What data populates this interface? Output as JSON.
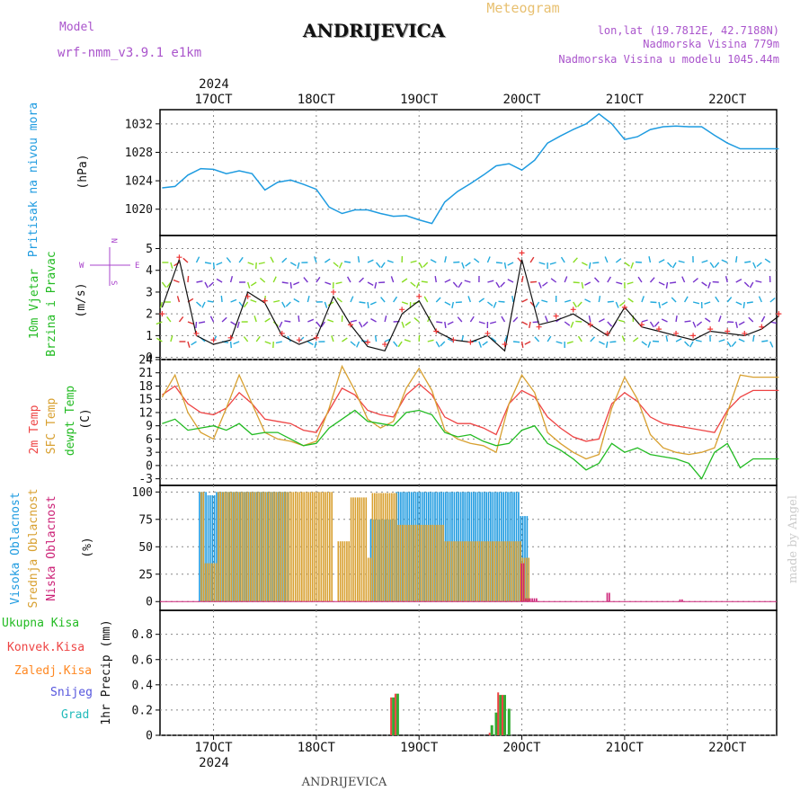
{
  "header": {
    "model_label": "Model",
    "model_name": "wrf-nmm_v3.9.1  e1km",
    "title": "ANDRIJEVICA",
    "meteogram_label": "Meteogram",
    "coords": "lon,lat (19.7812E, 42.7188N)",
    "elevation": "Nadmorska Visina 779m",
    "model_elevation": "Nadmorska Visina u modelu 1045.44m",
    "footer_title": "ANDRIJEVICA",
    "credit": "made by Angel"
  },
  "colors": {
    "pressure": "#1e9be0",
    "temp2m": "#ee4444",
    "sfc": "#d8a030",
    "dewpt": "#22bb22",
    "high_cloud": "#1e9be0",
    "mid_cloud": "#d8a030",
    "low_cloud": "#cc2277",
    "total_precip": "#33aa33",
    "conv_precip": "#ee4444",
    "frozen": "#ff8822",
    "snow": "#5555dd",
    "graupel": "#22bbbb",
    "compass": "#aa44cc",
    "wind_speed": "#111111",
    "gust": "#ee3333"
  },
  "time_axis": {
    "top_year": "2024",
    "bottom_year": "2024",
    "days": [
      "17OCT",
      "18OCT",
      "19OCT",
      "20OCT",
      "21OCT",
      "22OCT"
    ],
    "start_hours_before_first_day": 12,
    "total_hours": 144
  },
  "compass": {
    "n": "N",
    "s": "S",
    "e": "E",
    "w": "W"
  },
  "chart_data": [
    {
      "type": "line",
      "name": "pressure",
      "ylabel": "Pritisak na nivou mora",
      "unit": "(hPa)",
      "ylim": [
        1016.3,
        1034.0
      ],
      "yticks": [
        1020,
        1024,
        1028,
        1032
      ],
      "x_hours": [
        0,
        3,
        6,
        9,
        12,
        15,
        18,
        21,
        24,
        27,
        30,
        33,
        36,
        39,
        42,
        45,
        48,
        51,
        54,
        57,
        60,
        63,
        66,
        69,
        72,
        75,
        78,
        81,
        84,
        87,
        90,
        93,
        96,
        99,
        102,
        105,
        108,
        111,
        114,
        117,
        120,
        123,
        126,
        129,
        132,
        135,
        138,
        141,
        144
      ],
      "values": [
        1023.0,
        1023.2,
        1024.8,
        1025.7,
        1025.6,
        1025.0,
        1025.4,
        1025.0,
        1022.7,
        1023.8,
        1024.1,
        1023.5,
        1022.8,
        1020.3,
        1019.4,
        1019.9,
        1019.9,
        1019.4,
        1019.0,
        1019.1,
        1018.5,
        1018.0,
        1021.0,
        1022.5,
        1023.6,
        1024.8,
        1026.1,
        1026.4,
        1025.5,
        1026.9,
        1029.3,
        1030.3,
        1031.2,
        1032.0,
        1033.4,
        1032.0,
        1029.8,
        1030.2,
        1031.2,
        1031.6,
        1031.7,
        1031.6,
        1031.6,
        1030.4,
        1029.3,
        1028.5,
        1028.5,
        1028.5,
        1028.5
      ]
    },
    {
      "type": "line",
      "name": "wind",
      "ylabel": "10m Vjetar Brzina i Pravac",
      "label_lines": [
        "10m Vjetar",
        "Brzina i Pravac"
      ],
      "unit": "(m/s)",
      "ylim": [
        -0.1,
        5.6
      ],
      "yticks": [
        0,
        1,
        2,
        3,
        4,
        5
      ],
      "x_hours": [
        0,
        4,
        8,
        12,
        16,
        20,
        24,
        28,
        32,
        36,
        40,
        44,
        48,
        52,
        56,
        60,
        64,
        68,
        72,
        76,
        80,
        84,
        88,
        92,
        96,
        100,
        104,
        108,
        112,
        116,
        120,
        124,
        128,
        132,
        136,
        140,
        144
      ],
      "speed": [
        2.3,
        4.5,
        1.0,
        0.6,
        0.8,
        3.0,
        2.5,
        1.0,
        0.6,
        0.9,
        2.8,
        1.5,
        0.5,
        0.3,
        2.0,
        2.6,
        1.2,
        0.8,
        0.7,
        1.0,
        0.3,
        4.5,
        1.5,
        1.7,
        2.0,
        1.5,
        1.0,
        2.3,
        1.4,
        1.2,
        1.0,
        0.8,
        1.2,
        1.1,
        1.0,
        1.3,
        1.9
      ],
      "gust": [
        2.0,
        4.6,
        1.1,
        0.8,
        0.9,
        2.8,
        2.6,
        1.1,
        0.8,
        0.9,
        3.0,
        1.5,
        0.7,
        0.6,
        2.2,
        2.8,
        1.2,
        0.8,
        0.7,
        1.1,
        0.6,
        4.8,
        1.4,
        1.9,
        2.2,
        1.5,
        1.1,
        2.3,
        1.5,
        1.3,
        1.1,
        1.0,
        1.3,
        1.2,
        1.1,
        1.4,
        2.0
      ]
    },
    {
      "type": "line",
      "name": "temperature",
      "label_lines": [
        "2m Temp",
        "SFC Temp",
        "dewpt Temp"
      ],
      "unit": "(C)",
      "ylim": [
        -4.5,
        24.0
      ],
      "yticks": [
        -3,
        0,
        3,
        6,
        9,
        12,
        15,
        18,
        21,
        24
      ],
      "x_hours": [
        0,
        3,
        6,
        9,
        12,
        15,
        18,
        21,
        24,
        27,
        30,
        33,
        36,
        39,
        42,
        45,
        48,
        51,
        54,
        57,
        60,
        63,
        66,
        69,
        72,
        75,
        78,
        81,
        84,
        87,
        90,
        93,
        96,
        99,
        102,
        105,
        108,
        111,
        114,
        117,
        120,
        123,
        126,
        129,
        132,
        135,
        138,
        141,
        144
      ],
      "series": [
        {
          "name": "2m Temp",
          "values": [
            16.0,
            18.0,
            14.0,
            12.0,
            11.5,
            13.0,
            16.5,
            14.0,
            10.5,
            10.0,
            9.5,
            8.0,
            7.5,
            12.5,
            17.5,
            16.0,
            12.5,
            11.5,
            11.0,
            16.0,
            18.5,
            16.0,
            11.0,
            9.5,
            9.5,
            8.5,
            7.0,
            14.0,
            17.0,
            15.5,
            11.0,
            8.5,
            6.5,
            5.5,
            6.0,
            14.0,
            16.5,
            14.5,
            11.0,
            9.5,
            9.0,
            8.5,
            8.0,
            7.5,
            12.5,
            15.5,
            17.0,
            17.0,
            17.0
          ]
        },
        {
          "name": "SFC Temp",
          "values": [
            15.5,
            20.5,
            12.0,
            7.5,
            6.0,
            13.0,
            20.5,
            14.0,
            7.5,
            6.0,
            5.5,
            4.5,
            5.5,
            13.0,
            22.5,
            17.0,
            10.5,
            8.5,
            10.0,
            17.5,
            22.0,
            17.0,
            8.0,
            6.0,
            5.0,
            4.5,
            3.0,
            14.0,
            20.5,
            16.5,
            7.5,
            5.0,
            3.0,
            1.5,
            2.5,
            13.0,
            20.0,
            15.0,
            7.0,
            4.0,
            3.0,
            2.5,
            3.0,
            4.0,
            12.0,
            20.5,
            20.0,
            20.0,
            20.0
          ]
        },
        {
          "name": "dewpt Temp",
          "values": [
            9.5,
            10.5,
            8.0,
            8.5,
            9.0,
            8.0,
            9.5,
            7.0,
            7.5,
            7.5,
            6.0,
            4.5,
            5.0,
            8.5,
            10.5,
            12.5,
            10.0,
            9.5,
            9.0,
            12.0,
            12.5,
            11.5,
            7.5,
            6.5,
            7.0,
            5.5,
            4.5,
            5.0,
            8.0,
            9.0,
            5.0,
            3.5,
            1.5,
            -1.0,
            0.5,
            5.0,
            3.0,
            4.0,
            2.5,
            2.0,
            1.5,
            0.5,
            -3.0,
            3.0,
            5.0,
            -0.5,
            1.5,
            1.5,
            1.5
          ]
        }
      ]
    },
    {
      "type": "bar",
      "name": "cloud",
      "label_lines": [
        "Visoka Oblacnost",
        "Srednja Oblacnost",
        "Niska Oblacnost"
      ],
      "unit": "(%)",
      "ylim": [
        -8,
        106
      ],
      "yticks": [
        0,
        25,
        50,
        75,
        100
      ],
      "series": [
        {
          "name": "Visoka Oblacnost",
          "segments": [
            [
              9,
              11,
              100
            ],
            [
              11,
              13,
              97
            ],
            [
              13,
              20,
              100
            ],
            [
              20,
              24,
              100
            ],
            [
              24,
              30,
              100
            ],
            [
              49,
              55,
              75
            ],
            [
              55,
              72,
              100
            ],
            [
              72,
              84,
              100
            ],
            [
              84,
              86,
              78
            ]
          ]
        },
        {
          "name": "Srednja Oblacnost",
          "segments": [
            [
              9,
              10,
              100
            ],
            [
              10,
              13,
              35
            ],
            [
              13,
              40,
              100
            ],
            [
              41,
              44,
              55
            ],
            [
              44,
              48,
              95
            ],
            [
              48,
              49,
              40
            ],
            [
              49,
              55,
              99
            ],
            [
              55,
              66,
              70
            ],
            [
              66,
              84,
              55
            ],
            [
              84,
              86,
              40
            ]
          ]
        },
        {
          "name": "Niska Oblacnost",
          "segments": [
            [
              84,
              85,
              35
            ],
            [
              85,
              88,
              3
            ],
            [
              104,
              105,
              8
            ],
            [
              121,
              122,
              2
            ]
          ]
        }
      ]
    },
    {
      "type": "bar",
      "name": "precip",
      "label_lines": [
        "Ukupna  Kisa",
        "Konvek.Kisa",
        "Zaledj.Kisa",
        "Snijeg",
        "Grad"
      ],
      "unit": "1hr Precip (mm)",
      "ylim": [
        0,
        0.99
      ],
      "yticks": [
        0,
        0.2,
        0.4,
        0.6,
        0.8
      ],
      "series": [
        {
          "name": "Ukupna  Kisa",
          "x_hours": [
            54,
            55,
            77,
            78,
            79,
            80,
            81
          ],
          "values": [
            0.3,
            0.33,
            0.08,
            0.18,
            0.32,
            0.32,
            0.21
          ]
        },
        {
          "name": "Konvek.Kisa",
          "x_hours": [
            54,
            55,
            77,
            79,
            80
          ],
          "values": [
            0.3,
            0.33,
            0.02,
            0.34,
            0.32
          ]
        }
      ]
    }
  ]
}
